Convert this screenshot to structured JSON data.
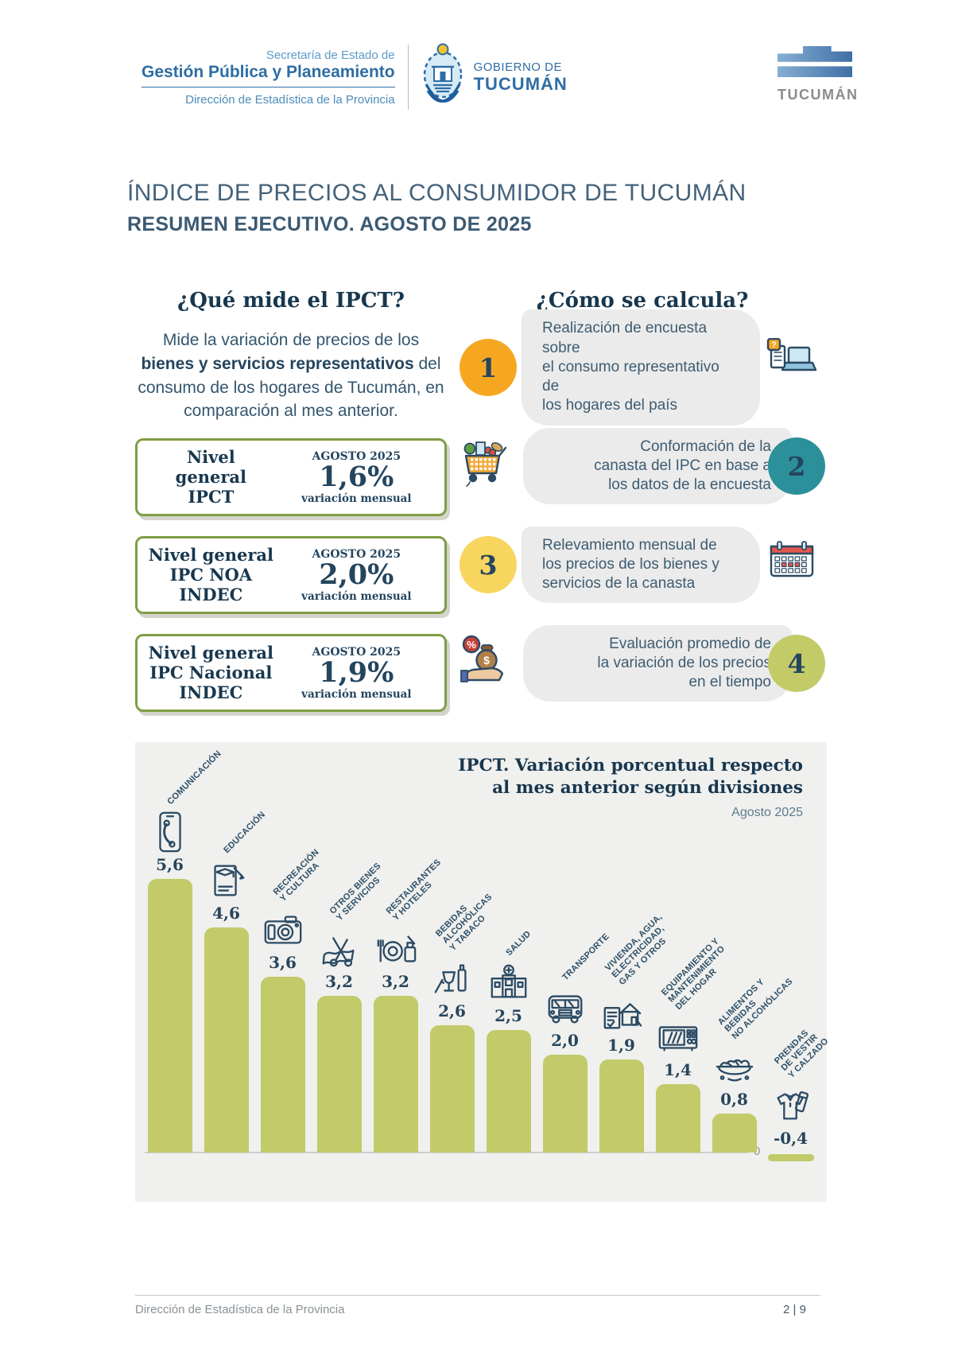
{
  "header": {
    "agency_logo": {
      "line1": "Secretaría de Estado de",
      "line2": "Gestión Pública y Planeamiento",
      "line3": "Dirección de Estadística de la Provincia"
    },
    "gov_logo": {
      "line1": "GOBIERNO DE",
      "line2": "TUCUMÁN"
    },
    "right_logo": {
      "text": "TUCUMÁN"
    }
  },
  "title": {
    "main": "ÍNDICE DE PRECIOS AL CONSUMIDOR DE TUCUMÁN",
    "subtitle": "RESUMEN EJECUTIVO. AGOSTO DE 2025"
  },
  "left_section": {
    "heading": "¿Qué mide el IPCT?",
    "description_pre": "Mide la variación de precios de los ",
    "description_bold": "bienes y servicios representativos",
    "description_post": " del consumo de los hogares de Tucumán, en comparación al mes anterior.",
    "boxes": [
      {
        "title_lines": [
          "Nivel",
          "general",
          "IPCT"
        ],
        "period": "AGOSTO 2025",
        "value": "1,6%",
        "note": "variación mensual"
      },
      {
        "title_lines": [
          "Nivel general",
          "IPC NOA",
          "INDEC"
        ],
        "period": "AGOSTO 2025",
        "value": "2,0%",
        "note": "variación mensual"
      },
      {
        "title_lines": [
          "Nivel general",
          "IPC Nacional",
          "INDEC"
        ],
        "period": "AGOSTO 2025",
        "value": "1,9%",
        "note": "variación mensual"
      }
    ]
  },
  "right_section": {
    "heading": "¿Cómo se calcula?",
    "steps": [
      {
        "number": "1",
        "number_color": "#f6a722",
        "layout": "num-left",
        "icon": "survey-laptop-icon",
        "text": "Realización de encuesta sobre\nel consumo representativo de\nlos hogares del país"
      },
      {
        "number": "2",
        "number_color": "#2b9099",
        "layout": "num-right",
        "icon": "shopping-cart-icon",
        "text": "Conformación de la\ncanasta del IPC en base a\nlos datos de la encuesta"
      },
      {
        "number": "3",
        "number_color": "#f8d55e",
        "layout": "num-left",
        "icon": "calendar-icon",
        "text": "Relevamiento mensual de\nlos precios de los bienes y\nservicios de la canasta"
      },
      {
        "number": "4",
        "number_color": "#c3cb68",
        "layout": "num-right",
        "icon": "money-hand-icon",
        "text": "Evaluación promedio de\nla variación de los precios\nen el tiempo"
      }
    ]
  },
  "chart_data": {
    "type": "bar",
    "title": "IPCT. Variación porcentual respecto al mes anterior según divisiones",
    "subtitle": "Agosto 2025",
    "xlabel": "",
    "ylabel": "",
    "baseline_label": "0",
    "bar_color": "#c2ca69",
    "grid": false,
    "ylim": [
      -0.4,
      5.6
    ],
    "categories": [
      {
        "label": "COMUNICACIÓN",
        "label_lines": [
          "COMUNICACIÓN"
        ],
        "icon": "phone-icon"
      },
      {
        "label": "EDUCACIÓN",
        "label_lines": [
          "EDUCACIÓN"
        ],
        "icon": "education-icon"
      },
      {
        "label": "RECREACIÓN Y CULTURA",
        "label_lines": [
          "RECREACIÓN",
          "Y CULTURA"
        ],
        "icon": "camera-icon"
      },
      {
        "label": "OTROS BIENES Y SERVICIOS",
        "label_lines": [
          "OTROS BIENES",
          "Y SERVICIOS"
        ],
        "icon": "sewing-icon"
      },
      {
        "label": "RESTAURANTES Y HOTELES",
        "label_lines": [
          "RESTAURANTES",
          "Y HOTELES"
        ],
        "icon": "restaurant-icon"
      },
      {
        "label": "BEBIDAS ALCOHÓLICAS Y TABACO",
        "label_lines": [
          "BEBIDAS",
          "ALCOHÓLICAS",
          "Y TABACO"
        ],
        "icon": "drinks-icon"
      },
      {
        "label": "SALUD",
        "label_lines": [
          "SALUD"
        ],
        "icon": "health-icon"
      },
      {
        "label": "TRANSPORTE",
        "label_lines": [
          "TRANSPORTE"
        ],
        "icon": "bus-icon"
      },
      {
        "label": "VIVIENDA, AGUA, ELECTRICIDAD, GAS Y OTROS",
        "label_lines": [
          "VIVIENDA, AGUA,",
          "ELECTRICIDAD,",
          "GAS Y OTROS"
        ],
        "icon": "housing-icon"
      },
      {
        "label": "EQUIPAMIENTO Y MANTENIMIENTO DEL HOGAR",
        "label_lines": [
          "EQUIPAMIENTO Y",
          "MANTENIMIENTO",
          "DEL HOGAR"
        ],
        "icon": "microwave-icon"
      },
      {
        "label": "ALIMENTOS Y BEBIDAS NO ALCOHÓLICAS",
        "label_lines": [
          "ALIMENTOS Y",
          "BEBIDAS",
          "NO ALCOHÓLICAS"
        ],
        "icon": "food-basket-icon"
      },
      {
        "label": "PRENDAS DE VESTIR Y CALZADO",
        "label_lines": [
          "PRENDAS",
          "DE VESTIR",
          "Y CALZADO"
        ],
        "icon": "clothing-icon"
      }
    ],
    "values": [
      5.6,
      4.6,
      3.6,
      3.2,
      3.2,
      2.6,
      2.5,
      2.0,
      1.9,
      1.4,
      0.8,
      -0.4
    ],
    "value_labels": [
      "5,6",
      "4,6",
      "3,6",
      "3,2",
      "3,2",
      "2,6",
      "2,5",
      "2,0",
      "1,9",
      "1,4",
      "0,8",
      "-0,4"
    ]
  },
  "footer": {
    "left": "Dirección de Estadística de la Provincia",
    "right": "2 | 9"
  }
}
